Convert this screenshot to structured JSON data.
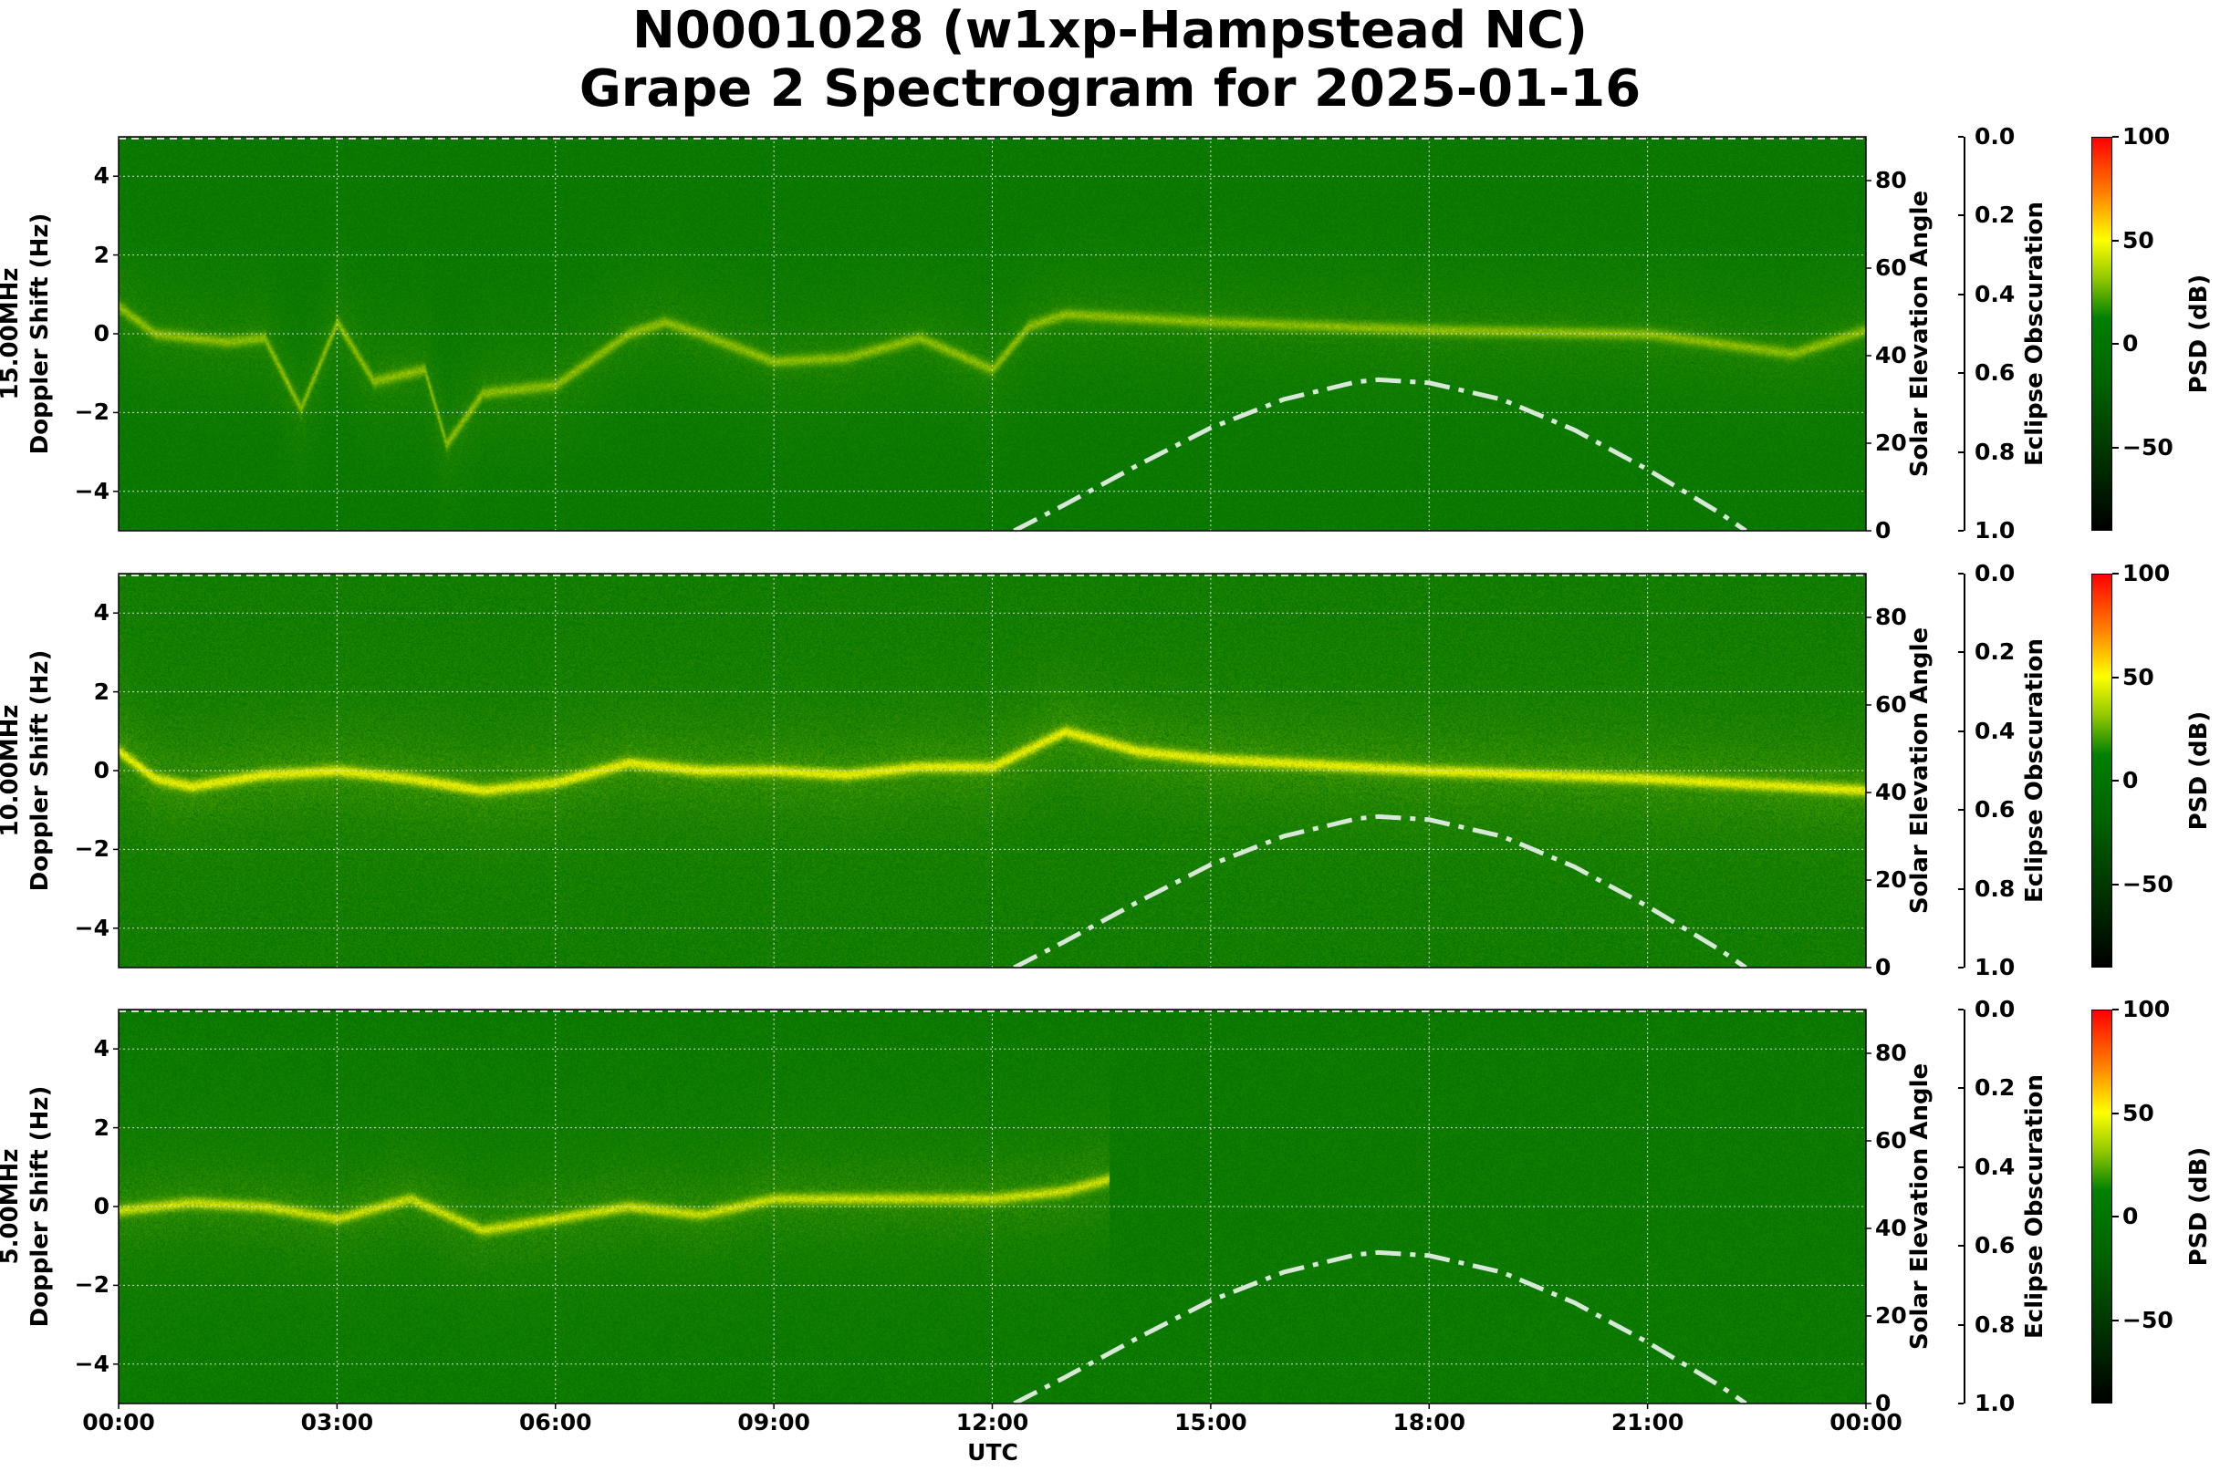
{
  "title_line1": "N0001028 (w1xp-Hampstead NC)",
  "title_line2": "Grape 2 Spectrogram for 2025-01-16",
  "colors": {
    "background_green": "#007a00",
    "trace_yellow": "#e6f000",
    "solar_curve": "#d8e8d8"
  },
  "chart_data": [
    {
      "type": "heatmap",
      "band": "15.00MHz",
      "ylabel_line1": "15.00MHz",
      "ylabel_line2": "Doppler Shift (Hz)",
      "ylim": [
        -5,
        5
      ],
      "noise_level": 0.25,
      "doppler_trace": [
        [
          0,
          0.7
        ],
        [
          0.5,
          0
        ],
        [
          1,
          -0.1
        ],
        [
          1.5,
          -0.2
        ],
        [
          2,
          -0.1
        ],
        [
          2.5,
          -1.9
        ],
        [
          3,
          0.3
        ],
        [
          3.5,
          -1.2
        ],
        [
          4.2,
          -0.9
        ],
        [
          4.5,
          -2.8
        ],
        [
          5,
          -1.5
        ],
        [
          6,
          -1.3
        ],
        [
          7,
          0
        ],
        [
          7.5,
          0.3
        ],
        [
          8,
          0
        ],
        [
          9,
          -0.7
        ],
        [
          10,
          -0.6
        ],
        [
          11,
          -0.1
        ],
        [
          12,
          -0.9
        ],
        [
          12.5,
          0.2
        ],
        [
          13,
          0.5
        ],
        [
          15,
          0.3
        ],
        [
          18,
          0.1
        ],
        [
          21,
          0
        ],
        [
          23,
          -0.5
        ],
        [
          24,
          0.1
        ]
      ],
      "trace_strength": 0.55
    },
    {
      "type": "heatmap",
      "band": "10.00MHz",
      "ylabel_line1": "10.00MHz",
      "ylabel_line2": "Doppler Shift (Hz)",
      "ylim": [
        -5,
        5
      ],
      "noise_level": 0.45,
      "doppler_trace": [
        [
          0,
          0.5
        ],
        [
          0.5,
          -0.2
        ],
        [
          1,
          -0.4
        ],
        [
          2,
          -0.1
        ],
        [
          3,
          0
        ],
        [
          4,
          -0.2
        ],
        [
          5,
          -0.5
        ],
        [
          6,
          -0.3
        ],
        [
          7,
          0.2
        ],
        [
          8,
          0
        ],
        [
          9,
          0
        ],
        [
          10,
          -0.1
        ],
        [
          11,
          0.1
        ],
        [
          12,
          0.1
        ],
        [
          13,
          1
        ],
        [
          14,
          0.5
        ],
        [
          15,
          0.3
        ],
        [
          17,
          0.1
        ],
        [
          18,
          0
        ],
        [
          21,
          -0.2
        ],
        [
          23,
          -0.4
        ],
        [
          24,
          -0.5
        ]
      ],
      "trace_strength": 0.95
    },
    {
      "type": "heatmap",
      "band": "5.00MHz",
      "ylabel_line1": "5.00MHz",
      "ylabel_line2": "Doppler Shift (Hz)",
      "ylim": [
        -5,
        5
      ],
      "noise_level": 0.3,
      "doppler_trace": [
        [
          0,
          -0.1
        ],
        [
          1,
          0.1
        ],
        [
          2,
          0
        ],
        [
          3,
          -0.3
        ],
        [
          4,
          0.2
        ],
        [
          5,
          -0.6
        ],
        [
          6,
          -0.3
        ],
        [
          7,
          0
        ],
        [
          8,
          -0.2
        ],
        [
          9,
          0.2
        ],
        [
          10,
          0.2
        ],
        [
          11,
          0.2
        ],
        [
          12,
          0.2
        ],
        [
          13,
          0.4
        ],
        [
          13.6,
          0.7
        ]
      ],
      "trace_strength": 0.8
    }
  ],
  "x_axis": {
    "label": "UTC",
    "ticks": [
      "00:00",
      "03:00",
      "06:00",
      "09:00",
      "12:00",
      "15:00",
      "18:00",
      "21:00",
      "00:00"
    ],
    "range_hours": [
      0,
      24
    ]
  },
  "y_ticks": [
    "4",
    "2",
    "0",
    "−2",
    "−4"
  ],
  "solar_axis": {
    "label": "Solar Elevation Angle",
    "ticks": [
      "0",
      "20",
      "40",
      "60",
      "80"
    ],
    "range": [
      0,
      90
    ],
    "curve": [
      [
        12.3,
        0
      ],
      [
        13,
        6
      ],
      [
        14,
        15
      ],
      [
        15,
        23.5
      ],
      [
        16,
        30
      ],
      [
        17,
        34
      ],
      [
        17.3,
        34.5
      ],
      [
        18,
        33.8
      ],
      [
        19,
        30
      ],
      [
        20,
        23
      ],
      [
        21,
        14
      ],
      [
        22,
        4
      ],
      [
        22.35,
        0
      ]
    ]
  },
  "eclipse_axis": {
    "label": "Eclipse Obscuration",
    "ticks": [
      "0.0",
      "0.2",
      "0.4",
      "0.6",
      "0.8",
      "1.0"
    ],
    "range": [
      0,
      1
    ],
    "obscuration": 0.0
  },
  "colorbar": {
    "label": "PSD (dB)",
    "ticks": [
      "100",
      "50",
      "0",
      "−50"
    ],
    "range": [
      -90,
      100
    ]
  }
}
